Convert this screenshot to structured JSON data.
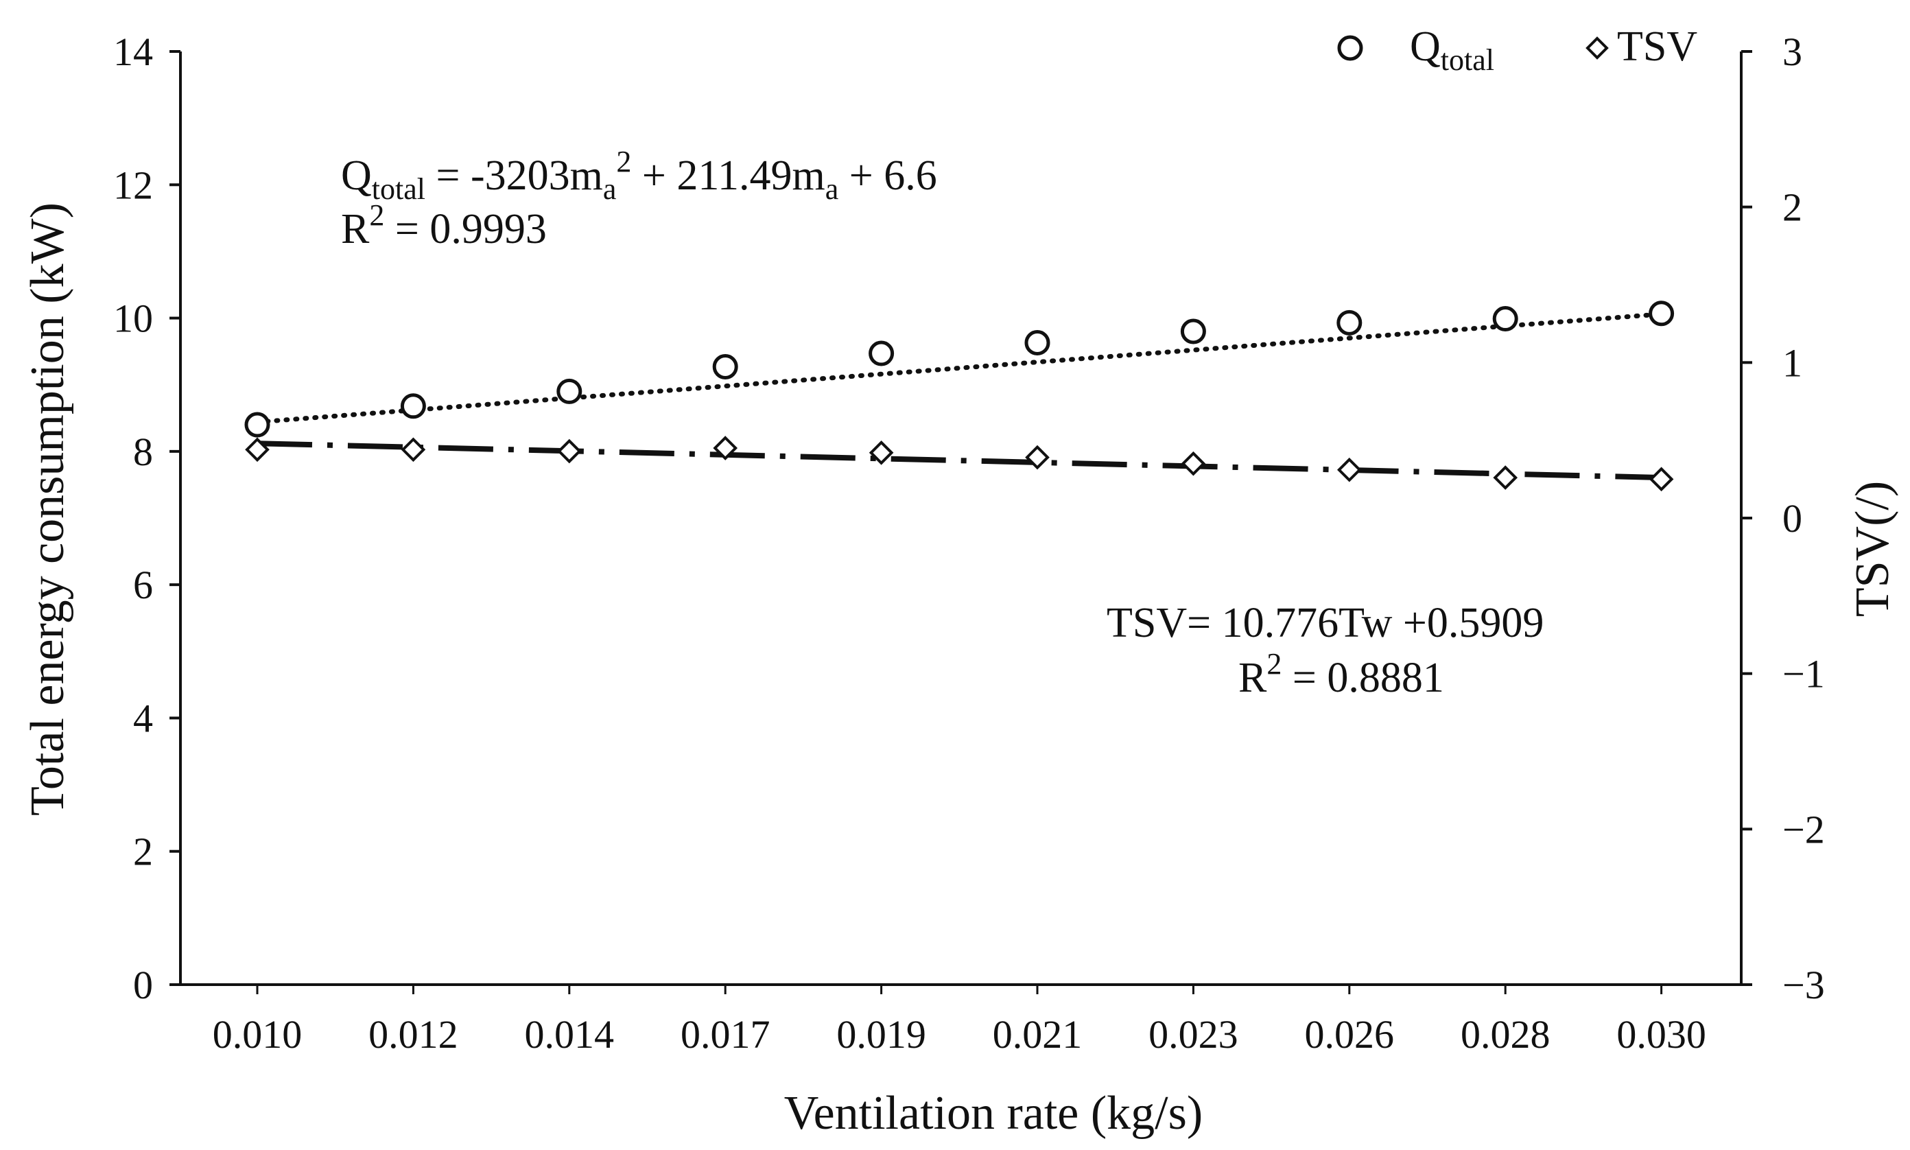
{
  "chart_data": {
    "type": "scatter",
    "categories": [
      "0.010",
      "0.012",
      "0.014",
      "0.017",
      "0.019",
      "0.021",
      "0.023",
      "0.026",
      "0.028",
      "0.030"
    ],
    "xlabel": "Ventilation rate (kg/s)",
    "ylabel": "Total energy consumption (kW)",
    "y2label": "TSV(/)",
    "ylim": [
      0,
      14
    ],
    "yticks": [
      "0",
      "2",
      "4",
      "6",
      "8",
      "10",
      "12",
      "14"
    ],
    "y2lim": [
      -3,
      3
    ],
    "y2ticks": [
      "−3",
      "−2",
      "−1",
      "0",
      "1",
      "2",
      "3"
    ],
    "grid": false,
    "legend_position": "top-right",
    "series": [
      {
        "name": "Q",
        "name_sub": "total",
        "axis": "left",
        "marker": "circle",
        "values": [
          8.4,
          8.68,
          8.9,
          9.27,
          9.47,
          9.63,
          9.8,
          9.93,
          9.99,
          10.07
        ],
        "trendline": {
          "style": "dotted",
          "x": [
            0.01,
            0.03
          ],
          "y": [
            8.44,
            10.06
          ]
        }
      },
      {
        "name": "TSV",
        "axis": "right",
        "marker": "diamond",
        "values": [
          0.44,
          0.44,
          0.43,
          0.45,
          0.42,
          0.39,
          0.35,
          0.31,
          0.26,
          0.25
        ],
        "trendline": {
          "style": "dashdot",
          "x": [
            0.01,
            0.03
          ],
          "y": [
            0.48,
            0.26
          ]
        }
      }
    ],
    "annotations": {
      "q_eq": {
        "q": "Q",
        "q_sub": "total",
        "eq1": " = -3203m",
        "sub_a1": "a",
        "sup2": "2",
        "eq2": " + 211.49m",
        "sub_a2": "a",
        "eq3": "  + 6.6",
        "r": "R",
        "r_sup": "2",
        "r_val": " = 0.9993"
      },
      "tsv_eq": {
        "line1": "TSV= 10.776Tw +0.5909",
        "r": "R",
        "r_sup": "2",
        "r_val": " = 0.8881"
      }
    }
  }
}
